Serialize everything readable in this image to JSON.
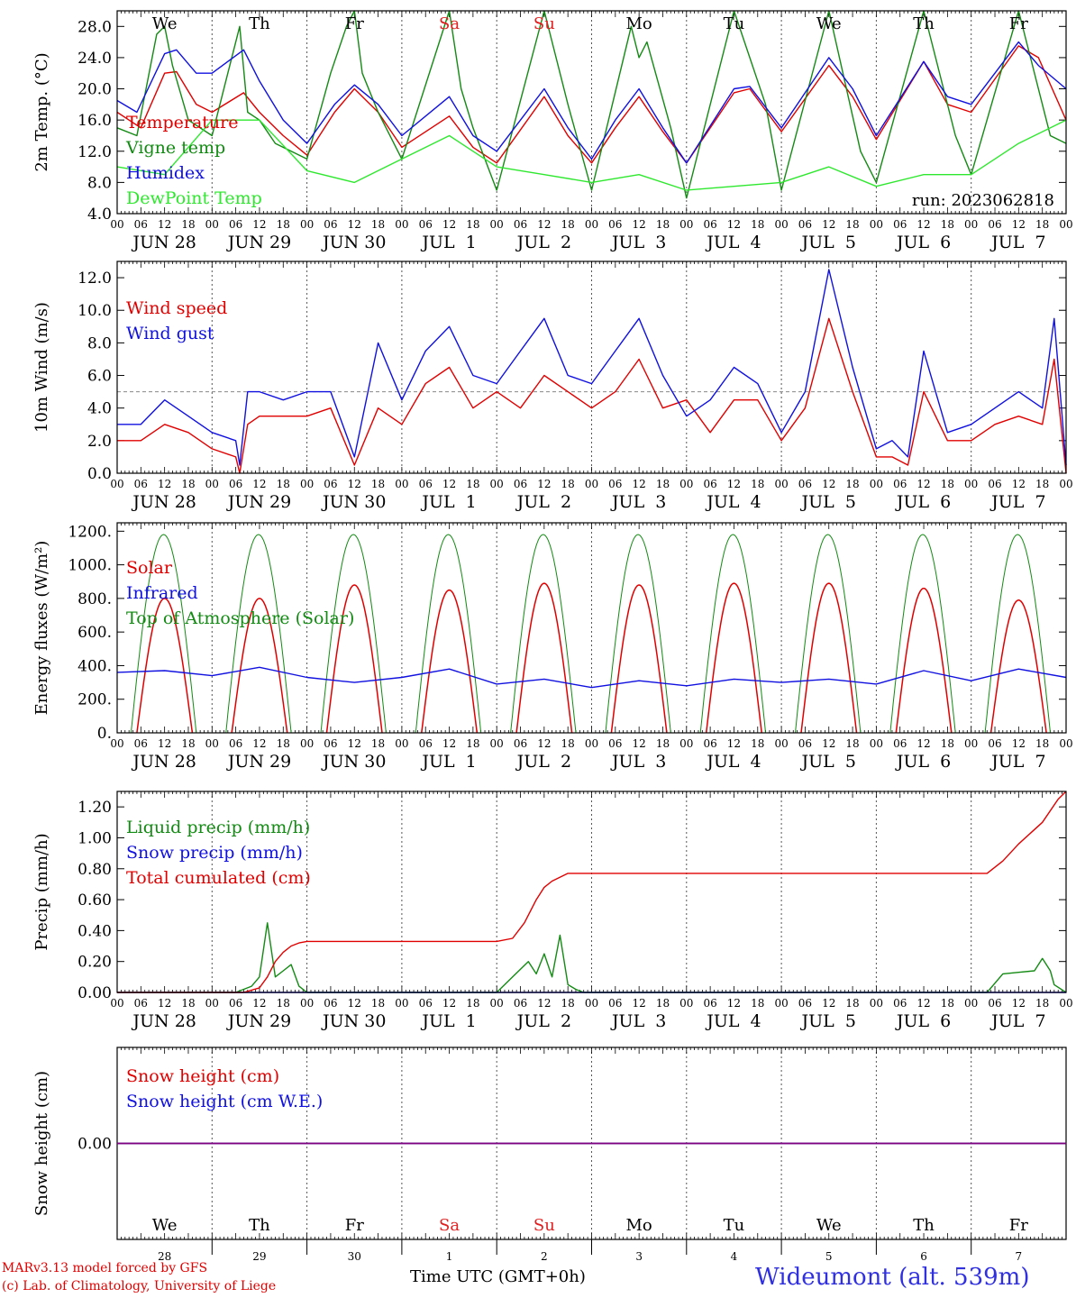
{
  "run_label": "run: 2023062818",
  "footer": {
    "credit_line1": "MARv3.13 model forced by GFS",
    "credit_line2": "(c) Lab. of Climatology, University of Liege",
    "xaxis_title": "Time UTC (GMT+0h)",
    "station": "Wideumont (alt. 539m)"
  },
  "colors": {
    "red": "#e00000",
    "green": "#138a13",
    "blue": "#1010e0",
    "light_green": "#2ee82e",
    "purple": "#800080",
    "weekend": "#e02020"
  },
  "time_axis": {
    "hour_ticks": [
      "00",
      "06",
      "12",
      "18"
    ],
    "dates": [
      "JUN 28",
      "JUN 29",
      "JUN 30",
      "JUL  1",
      "JUL  2",
      "JUL  3",
      "JUL  4",
      "JUL  5",
      "JUL  6",
      "JUL  7"
    ],
    "weekdays": [
      "We",
      "Th",
      "Fr",
      "Sa",
      "Su",
      "Mo",
      "Tu",
      "We",
      "Th",
      "Fr"
    ],
    "weekend_flags": [
      false,
      false,
      false,
      true,
      true,
      false,
      false,
      false,
      false,
      false
    ],
    "day_numbers": [
      "28",
      "29",
      "30",
      "1",
      "2",
      "3",
      "4",
      "5",
      "6",
      "7"
    ]
  },
  "chart_data": [
    {
      "type": "line",
      "id": "temperature",
      "ylabel": "2m Temp. (°C)",
      "yticks": [
        "4.0",
        "8.0",
        "12.0",
        "16.0",
        "20.0",
        "24.0",
        "28.0"
      ],
      "ylim": [
        4,
        30
      ],
      "x_unit": "hours since JUN 28 00 UTC",
      "series": [
        {
          "name": "Temperature",
          "color": "#e00000",
          "x": [
            0,
            6,
            12,
            15,
            20,
            24,
            32,
            36,
            42,
            48,
            55,
            60,
            66,
            72,
            84,
            90,
            96,
            108,
            114,
            120,
            126,
            132,
            138,
            144,
            156,
            160,
            168,
            180,
            186,
            192,
            204,
            210,
            216,
            228,
            233,
            240
          ],
          "y": [
            17,
            15,
            22,
            22.2,
            18,
            17,
            19.5,
            17,
            14,
            11.5,
            17,
            20,
            17,
            12.5,
            16.5,
            12.5,
            10.5,
            19,
            14,
            10.5,
            15,
            19,
            14.5,
            10.5,
            19.5,
            20,
            14.5,
            23,
            19,
            13.5,
            23.5,
            18,
            17,
            25.5,
            24,
            16
          ]
        },
        {
          "name": "Vigne temp",
          "color": "#138a13",
          "x": [
            0,
            5,
            10,
            12,
            14,
            18,
            24,
            28,
            31,
            33,
            36,
            40,
            48,
            54,
            58,
            60,
            62,
            66,
            72,
            84,
            87,
            90,
            96,
            108,
            114,
            120,
            130,
            132,
            134,
            140,
            144,
            156,
            164,
            168,
            180,
            188,
            192,
            204,
            212,
            216,
            228,
            236,
            240
          ],
          "y": [
            15,
            14,
            27,
            28,
            23,
            16,
            14,
            22,
            28,
            17,
            16,
            13,
            11,
            22,
            28,
            30,
            22,
            17,
            11,
            30,
            20,
            15,
            7,
            30,
            18,
            7,
            28,
            24,
            26,
            15,
            6,
            30,
            18,
            7,
            30,
            12,
            8,
            30,
            14,
            9,
            30,
            14,
            13
          ]
        },
        {
          "name": "Humidex",
          "color": "#1010e0",
          "x": [
            0,
            5,
            12,
            15,
            20,
            24,
            32,
            36,
            42,
            48,
            55,
            60,
            66,
            72,
            84,
            90,
            96,
            108,
            114,
            120,
            126,
            132,
            138,
            144,
            156,
            160,
            168,
            180,
            186,
            192,
            204,
            210,
            216,
            228,
            233,
            240
          ],
          "y": [
            18.5,
            17,
            24.5,
            25,
            22,
            22,
            25,
            21,
            16,
            13,
            18,
            20.5,
            18,
            14,
            19,
            14,
            12,
            20,
            15,
            11,
            16,
            20,
            15,
            10.5,
            20,
            20.3,
            15,
            24,
            20,
            14,
            23.5,
            19,
            18,
            26,
            23,
            20
          ]
        },
        {
          "name": "DewPoint Temp",
          "color": "#2ee82e",
          "x": [
            0,
            12,
            24,
            36,
            48,
            60,
            72,
            84,
            96,
            108,
            120,
            132,
            144,
            156,
            168,
            180,
            192,
            204,
            216,
            228,
            240
          ],
          "y": [
            10,
            9,
            16,
            16,
            9.5,
            8,
            11,
            14,
            10,
            9,
            8,
            9,
            7,
            7.5,
            8,
            10,
            7.5,
            9,
            9,
            13,
            16
          ]
        }
      ]
    },
    {
      "type": "line",
      "id": "wind",
      "ylabel": "10m Wind (m/s)",
      "yticks": [
        "0.0",
        "2.0",
        "4.0",
        "6.0",
        "8.0",
        "10.0",
        "12.0"
      ],
      "ylim": [
        0,
        13
      ],
      "reference_line": 5,
      "x_unit": "hours since JUN 28 00 UTC",
      "series": [
        {
          "name": "Wind speed",
          "color": "#e00000",
          "x": [
            0,
            6,
            12,
            18,
            24,
            30,
            31,
            33,
            36,
            42,
            48,
            54,
            60,
            66,
            72,
            78,
            84,
            90,
            96,
            102,
            108,
            114,
            120,
            126,
            132,
            138,
            144,
            150,
            156,
            162,
            168,
            174,
            180,
            186,
            192,
            196,
            200,
            204,
            210,
            216,
            222,
            228,
            234,
            237,
            240
          ],
          "y": [
            2,
            2,
            3,
            2.5,
            1.5,
            1,
            0,
            3,
            3.5,
            3.5,
            3.5,
            4,
            0.5,
            4,
            3,
            5.5,
            6.5,
            4,
            5,
            4,
            6,
            5,
            4,
            5,
            7,
            4,
            4.5,
            2.5,
            4.5,
            4.5,
            2,
            4,
            9.5,
            5,
            1,
            1,
            0.5,
            5,
            2,
            2,
            3,
            3.5,
            3,
            7,
            0
          ]
        },
        {
          "name": "Wind gust",
          "color": "#1010e0",
          "x": [
            0,
            6,
            12,
            18,
            24,
            30,
            31,
            33,
            36,
            42,
            48,
            54,
            60,
            66,
            72,
            78,
            84,
            90,
            96,
            102,
            108,
            114,
            120,
            126,
            132,
            138,
            144,
            150,
            156,
            162,
            168,
            174,
            180,
            186,
            192,
            196,
            200,
            204,
            210,
            216,
            222,
            228,
            234,
            237,
            240
          ],
          "y": [
            3,
            3,
            4.5,
            3.5,
            2.5,
            2,
            0.5,
            5,
            5,
            4.5,
            5,
            5,
            1,
            8,
            4.5,
            7.5,
            9,
            6,
            5.5,
            7.5,
            9.5,
            6,
            5.5,
            7.5,
            9.5,
            6,
            3.5,
            4.5,
            6.5,
            5.5,
            2.5,
            5,
            12.5,
            6.5,
            1.5,
            2,
            1,
            7.5,
            2.5,
            3,
            4,
            5,
            4,
            9.5,
            0.5
          ]
        }
      ]
    },
    {
      "type": "line",
      "id": "energy",
      "ylabel": "Energy fluxes (W/m²)",
      "yticks": [
        "0.",
        "200.",
        "400.",
        "600.",
        "800.",
        "1000.",
        "1200."
      ],
      "ylim": [
        0,
        1250
      ],
      "x_unit": "hours since JUN 28 00 UTC",
      "series": [
        {
          "name": "Solar",
          "color": "#e00000",
          "peaks": [
            800,
            800,
            880,
            850,
            890,
            880,
            890,
            890,
            860,
            790
          ]
        },
        {
          "name": "Infrared",
          "color": "#1010e0",
          "x": [
            0,
            12,
            24,
            36,
            48,
            60,
            72,
            84,
            96,
            108,
            120,
            132,
            144,
            156,
            168,
            180,
            192,
            204,
            216,
            228,
            240
          ],
          "y": [
            360,
            370,
            340,
            390,
            330,
            300,
            330,
            380,
            290,
            320,
            270,
            310,
            280,
            320,
            300,
            320,
            290,
            370,
            310,
            380,
            330
          ]
        },
        {
          "name": "Top of Atmosphere (Solar)",
          "color": "#138a13",
          "peaks": [
            1180,
            1180,
            1180,
            1180,
            1180,
            1180,
            1180,
            1180,
            1180,
            1180
          ]
        }
      ]
    },
    {
      "type": "line",
      "id": "precip",
      "ylabel": "Precip (mm/h)",
      "yticks": [
        "0.00",
        "0.20",
        "0.40",
        "0.60",
        "0.80",
        "1.00",
        "1.20"
      ],
      "ylim": [
        0,
        1.3
      ],
      "x_unit": "hours since JUN 28 00 UTC",
      "series": [
        {
          "name": "Liquid precip (mm/h)",
          "color": "#138a13",
          "x": [
            0,
            30,
            34,
            36,
            38,
            40,
            42,
            44,
            46,
            48,
            50,
            96,
            100,
            104,
            106,
            108,
            110,
            112,
            114,
            116,
            118,
            120,
            220,
            224,
            228,
            232,
            234,
            236,
            237,
            240
          ],
          "y": [
            0,
            0,
            0.04,
            0.1,
            0.45,
            0.1,
            0.14,
            0.18,
            0.04,
            0,
            0,
            0,
            0.1,
            0.2,
            0.12,
            0.25,
            0.1,
            0.37,
            0.05,
            0.02,
            0,
            0,
            0,
            0.12,
            0.13,
            0.14,
            0.22,
            0.14,
            0.05,
            0
          ]
        },
        {
          "name": "Snow precip (mm/h)",
          "color": "#1010e0",
          "x": [
            0,
            240
          ],
          "y": [
            0,
            0
          ]
        },
        {
          "name": "Total cumulated (cm)",
          "color": "#e00000",
          "x": [
            0,
            32,
            36,
            38,
            40,
            42,
            44,
            46,
            48,
            60,
            84,
            96,
            100,
            103,
            106,
            108,
            110,
            114,
            132,
            168,
            204,
            220,
            224,
            228,
            234,
            238,
            240
          ],
          "y": [
            0,
            0,
            0.03,
            0.1,
            0.2,
            0.26,
            0.3,
            0.32,
            0.33,
            0.33,
            0.33,
            0.33,
            0.35,
            0.45,
            0.6,
            0.68,
            0.72,
            0.77,
            0.77,
            0.77,
            0.77,
            0.77,
            0.85,
            0.96,
            1.1,
            1.25,
            1.3
          ]
        }
      ]
    },
    {
      "type": "line",
      "id": "snow",
      "ylabel": "Snow height (cm)",
      "yticks": [
        "0.00"
      ],
      "ylim": [
        -1,
        1
      ],
      "x_unit": "hours since JUN 28 00 UTC",
      "series": [
        {
          "name": "Snow height (cm)",
          "color": "#e00000",
          "x": [
            0,
            240
          ],
          "y": [
            0,
            0
          ]
        },
        {
          "name": "Snow height (cm W.E.)",
          "color": "#1010e0",
          "x": [
            0,
            240
          ],
          "y": [
            0,
            0
          ]
        }
      ]
    }
  ]
}
